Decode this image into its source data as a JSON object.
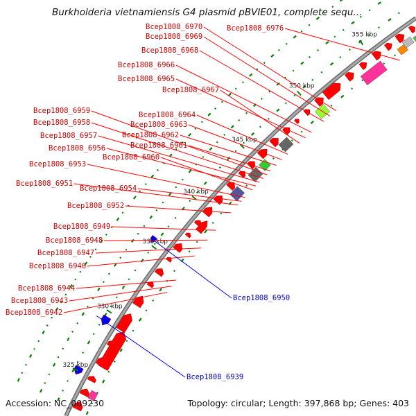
{
  "title": "Burkholderia vietnamiensis G4 plasmid pBVIE01, complete sequ...",
  "footer": {
    "accession": "Accession: NC_009230",
    "summary": "Topology: circular; Length: 397,868 bp; Genes: 403"
  },
  "ticks": [
    "325 kbp",
    "330 kbp",
    "335 kbp",
    "340 kbp",
    "345 kbp",
    "350 kbp",
    "355 kbp"
  ],
  "genes_plus": [
    "Bcep1808_6976",
    "Bcep1808_6970",
    "Bcep1808_6969",
    "Bcep1808_6968",
    "Bcep1808_6966",
    "Bcep1808_6965",
    "Bcep1808_6967",
    "Bcep1808_6964",
    "Bcep1808_6963",
    "Bcep1808_6962",
    "Bcep1808_6959",
    "Bcep1808_6958",
    "Bcep1808_6957",
    "Bcep1808_6956",
    "Bcep1808_6961",
    "Bcep1808_6960",
    "Bcep1808_6953",
    "Bcep1808_6951",
    "Bcep1808_6954",
    "Bcep1808_6952",
    "Bcep1808_6949",
    "Bcep1808_6948",
    "Bcep1808_6947",
    "Bcep1808_6946",
    "Bcep1808_6944",
    "Bcep1808_6943",
    "Bcep1808_6942"
  ],
  "genes_minus": [
    "Bcep1808_6950",
    "Bcep1808_6939"
  ],
  "colors": {
    "forward_gene": "#ff0000",
    "reverse_gene": "#0000ee",
    "backbone": "#888888",
    "tick": "#008000",
    "gc_dots": "#008000",
    "magenta": "#ff3399",
    "lime": "#99ff33",
    "green": "#33cc33",
    "gray": "#666666",
    "slate": "#555599",
    "orange": "#ff8800",
    "silver": "#bbbbbb"
  }
}
